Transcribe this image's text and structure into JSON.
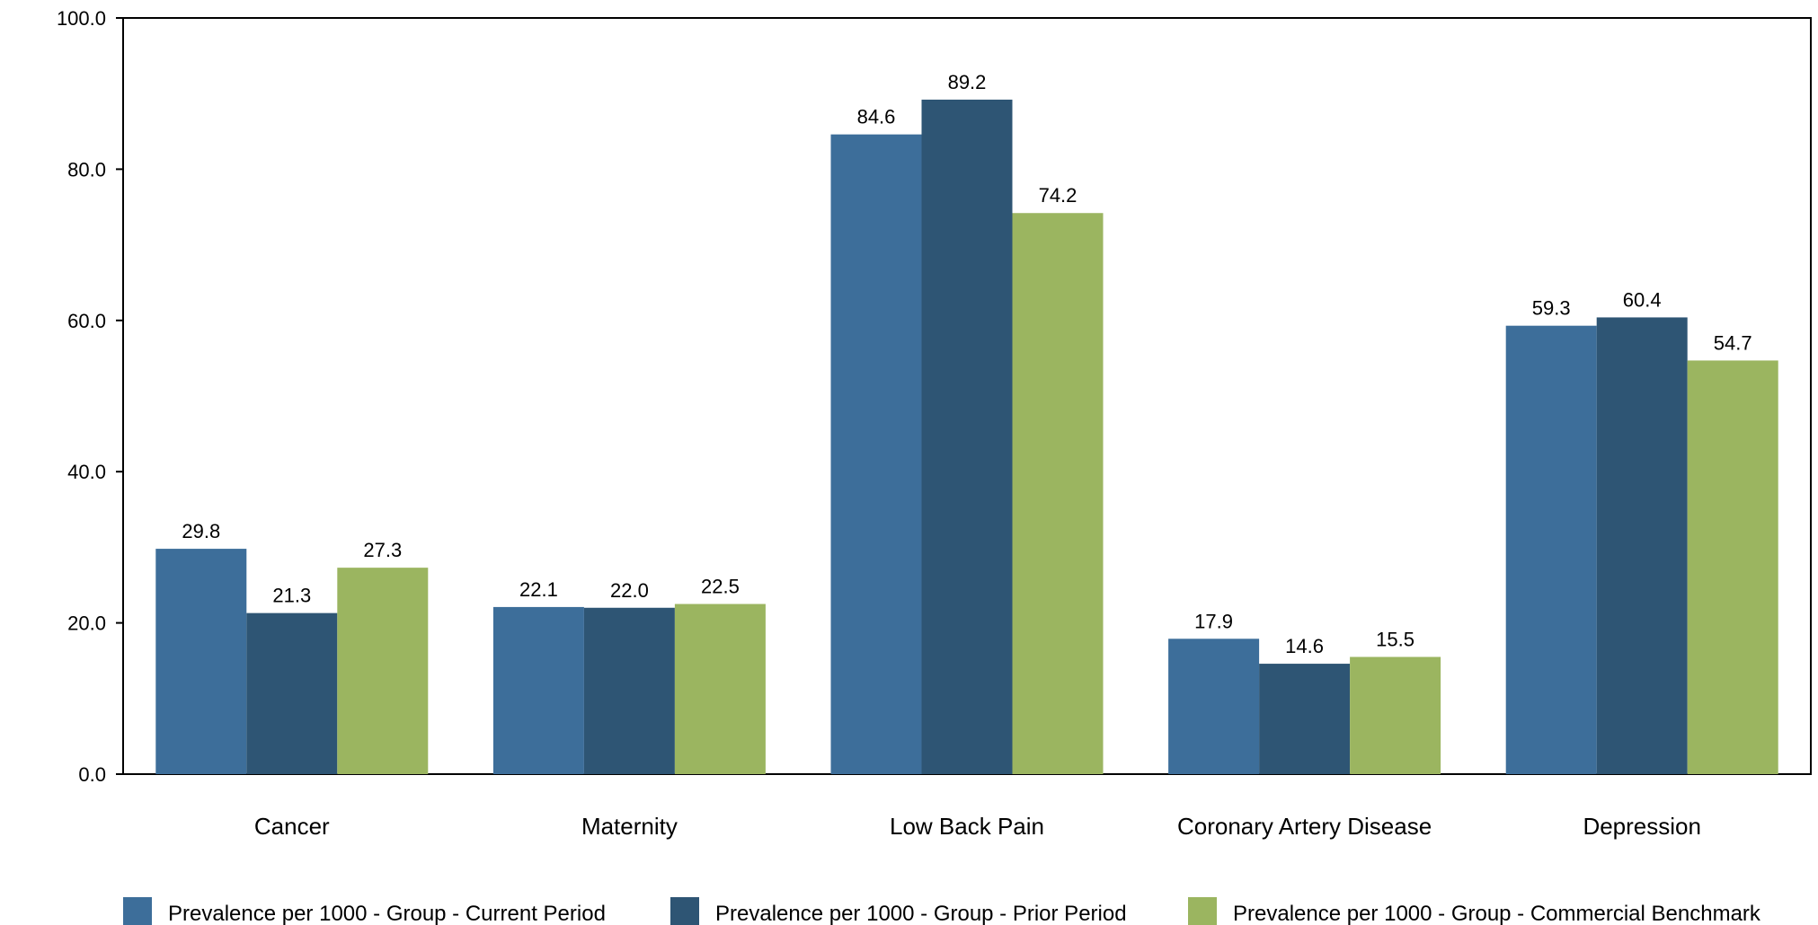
{
  "chart_data": {
    "type": "bar",
    "title": "",
    "xlabel": "",
    "ylabel": "",
    "ylim": [
      0,
      100
    ],
    "yticks": [
      "0.0",
      "20.0",
      "40.0",
      "60.0",
      "80.0",
      "100.0"
    ],
    "grid": false,
    "legend_position": "bottom",
    "categories": [
      "Cancer",
      "Maternity",
      "Low Back Pain",
      "Coronary Artery Disease",
      "Depression"
    ],
    "series": [
      {
        "name": "Prevalence per 1000 - Group - Current Period",
        "color": "#3d6e9a",
        "values": [
          29.8,
          22.1,
          84.6,
          17.9,
          59.3
        ],
        "labels": [
          "29.8",
          "22.1",
          "84.6",
          "17.9",
          "59.3"
        ]
      },
      {
        "name": "Prevalence per 1000 - Group - Prior Period",
        "color": "#2e5574",
        "values": [
          21.3,
          22.0,
          89.2,
          14.6,
          60.4
        ],
        "labels": [
          "21.3",
          "22.0",
          "89.2",
          "14.6",
          "60.4"
        ]
      },
      {
        "name": "Prevalence per 1000 - Group - Commercial Benchmark",
        "color": "#9bb560",
        "values": [
          27.3,
          22.5,
          74.2,
          15.5,
          54.7
        ],
        "labels": [
          "27.3",
          "22.5",
          "74.2",
          "15.5",
          "54.7"
        ]
      }
    ]
  }
}
